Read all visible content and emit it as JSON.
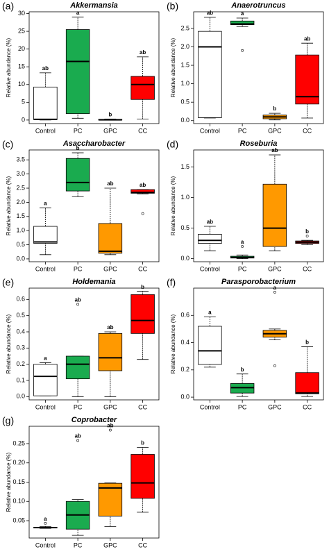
{
  "chart_data": [
    {
      "type": "box",
      "panel": "(a)",
      "title": "Akkermansia",
      "ylabel": "Relative abundance (%)",
      "categories": [
        "Control",
        "PC",
        "GPC",
        "CC"
      ],
      "colors": [
        "#ffffff",
        "#1aab4f",
        "#ff9900",
        "#ff0000"
      ],
      "ylim": [
        -1,
        30.5
      ],
      "yticks": [
        0,
        5,
        10,
        15,
        20,
        25,
        30
      ],
      "boxes": [
        {
          "min": 0,
          "q1": 0.1,
          "median": 0.2,
          "q3": 9.3,
          "max": 13.3,
          "outliers": []
        },
        {
          "min": 0.5,
          "q1": 1.8,
          "median": 16.5,
          "q3": 25.5,
          "max": 29,
          "outliers": []
        },
        {
          "min": 0,
          "q1": 0,
          "median": 0.05,
          "q3": 0.2,
          "max": 0.3,
          "outliers": []
        },
        {
          "min": 0.3,
          "q1": 5.8,
          "median": 10,
          "q3": 12.3,
          "max": 17.8,
          "outliers": []
        }
      ],
      "letters": [
        "ab",
        "a",
        "b",
        "ab"
      ]
    },
    {
      "type": "box",
      "panel": "(b)",
      "title": "Anaerotruncus",
      "ylabel": "Relative abundance (%)",
      "categories": [
        "Control",
        "PC",
        "GPC",
        "CC"
      ],
      "colors": [
        "#ffffff",
        "#1aab4f",
        "#ff9900",
        "#ff0000"
      ],
      "ylim": [
        -0.08,
        2.95
      ],
      "yticks": [
        {
          "value": 0,
          "label": "0.0"
        },
        0.5,
        {
          "value": 1,
          "label": "1.0"
        },
        1.5,
        {
          "value": 2,
          "label": "2.0"
        },
        2.5
      ],
      "boxes": [
        {
          "min": 0.07,
          "q1": 0.08,
          "median": 2.0,
          "q3": 2.42,
          "max": 2.8,
          "outliers": []
        },
        {
          "min": 2.55,
          "q1": 2.6,
          "median": 2.62,
          "q3": 2.7,
          "max": 2.78,
          "outliers": [
            1.9
          ]
        },
        {
          "min": 0.02,
          "q1": 0.05,
          "median": 0.1,
          "q3": 0.15,
          "max": 0.2,
          "outliers": []
        },
        {
          "min": 0.07,
          "q1": 0.45,
          "median": 0.65,
          "q3": 1.78,
          "max": 2.1,
          "outliers": []
        }
      ],
      "letters": [
        "ab",
        "a",
        "b",
        "ab"
      ]
    },
    {
      "type": "box",
      "panel": "(c)",
      "title": "Asaccharobacter",
      "ylabel": "Relative abundance (%)",
      "categories": [
        "Control",
        "PC",
        "GPC",
        "CC"
      ],
      "colors": [
        "#ffffff",
        "#1aab4f",
        "#ff9900",
        "#ff0000"
      ],
      "ylim": [
        -0.1,
        3.85
      ],
      "yticks": [
        {
          "value": 0,
          "label": "0.0"
        },
        0.5,
        {
          "value": 1,
          "label": "1.0"
        },
        1.5,
        {
          "value": 2,
          "label": "2.0"
        },
        2.5,
        {
          "value": 3,
          "label": "3.0"
        },
        3.5
      ],
      "boxes": [
        {
          "min": 0.15,
          "q1": 0.55,
          "median": 0.6,
          "q3": 1.15,
          "max": 1.8,
          "outliers": []
        },
        {
          "min": 2.2,
          "q1": 2.4,
          "median": 2.7,
          "q3": 3.55,
          "max": 3.75,
          "outliers": []
        },
        {
          "min": 0.15,
          "q1": 0.2,
          "median": 0.27,
          "q3": 1.25,
          "max": 2.5,
          "outliers": []
        },
        {
          "min": 2.3,
          "q1": 2.32,
          "median": 2.35,
          "q3": 2.45,
          "max": 2.45,
          "outliers": [
            1.6
          ]
        }
      ],
      "letters": [
        "a",
        "b",
        "ab",
        "ab"
      ]
    },
    {
      "type": "box",
      "panel": "(d)",
      "title": "Roseburia",
      "ylabel": "Relative abundance (%)",
      "categories": [
        "Control",
        "PC",
        "GPC",
        "CC"
      ],
      "colors": [
        "#ffffff",
        "#1aab4f",
        "#ff9900",
        "#ff0000"
      ],
      "ylim": [
        -0.05,
        1.78
      ],
      "yticks": [
        {
          "value": 0,
          "label": "0.0"
        },
        0.5,
        {
          "value": 1,
          "label": "1.0"
        },
        1.5
      ],
      "boxes": [
        {
          "min": 0.13,
          "q1": 0.25,
          "median": 0.3,
          "q3": 0.4,
          "max": 0.53,
          "outliers": []
        },
        {
          "min": 0,
          "q1": 0.01,
          "median": 0.02,
          "q3": 0.04,
          "max": 0.06,
          "outliers": [
            0.2
          ]
        },
        {
          "min": 0.13,
          "q1": 0.2,
          "median": 0.5,
          "q3": 1.22,
          "max": 1.7,
          "outliers": []
        },
        {
          "min": 0.23,
          "q1": 0.25,
          "median": 0.27,
          "q3": 0.29,
          "max": 0.3,
          "outliers": [
            0.37
          ]
        }
      ],
      "letters": [
        "ab",
        "a",
        "ab",
        "b"
      ]
    },
    {
      "type": "box",
      "panel": "(e)",
      "title": "Holdemania",
      "ylabel": "Relative abundance (%)",
      "categories": [
        "Control",
        "PC",
        "GPC",
        "CC"
      ],
      "colors": [
        "#ffffff",
        "#1aab4f",
        "#ff9900",
        "#ff0000"
      ],
      "ylim": [
        -0.02,
        0.67
      ],
      "yticks": [
        {
          "value": 0,
          "label": "0.0"
        },
        0.1,
        0.2,
        0.3,
        0.4,
        0.5,
        0.6
      ],
      "boxes": [
        {
          "min": 0.005,
          "q1": 0.005,
          "median": 0.125,
          "q3": 0.2,
          "max": 0.21,
          "outliers": []
        },
        {
          "min": 0,
          "q1": 0.11,
          "median": 0.2,
          "q3": 0.25,
          "max": 0.25,
          "outliers": [
            0.57
          ]
        },
        {
          "min": 0,
          "q1": 0.16,
          "median": 0.24,
          "q3": 0.39,
          "max": 0.4,
          "outliers": []
        },
        {
          "min": 0.23,
          "q1": 0.39,
          "median": 0.47,
          "q3": 0.63,
          "max": 0.65,
          "outliers": []
        }
      ],
      "letters": [
        "a",
        "ab",
        "ab",
        "b"
      ]
    },
    {
      "type": "box",
      "panel": "(f)",
      "title": "Parasporobacterium",
      "ylabel": "Relative abundance (%)",
      "categories": [
        "Control",
        "PC",
        "GPC",
        "CC"
      ],
      "colors": [
        "#ffffff",
        "#1aab4f",
        "#ff9900",
        "#ff0000"
      ],
      "ylim": [
        -0.02,
        0.8
      ],
      "yticks": [
        {
          "value": 0,
          "label": "0.0"
        },
        0.2,
        0.4,
        0.6
      ],
      "boxes": [
        {
          "min": 0.22,
          "q1": 0.24,
          "median": 0.34,
          "q3": 0.52,
          "max": 0.59,
          "outliers": []
        },
        {
          "min": 0.005,
          "q1": 0.03,
          "median": 0.07,
          "q3": 0.1,
          "max": 0.17,
          "outliers": []
        },
        {
          "min": 0.42,
          "q1": 0.44,
          "median": 0.465,
          "q3": 0.49,
          "max": 0.5,
          "outliers": [
            0.23,
            0.77
          ]
        },
        {
          "min": 0.005,
          "q1": 0.025,
          "median": 0.03,
          "q3": 0.18,
          "max": 0.37,
          "outliers": []
        }
      ],
      "letters": [
        "a",
        "b",
        "a",
        "b"
      ]
    },
    {
      "type": "box",
      "panel": "(g)",
      "title": "Coprobacter",
      "ylabel": "Relative abundance (%)",
      "categories": [
        "Control",
        "PC",
        "GPC",
        "CC"
      ],
      "colors": [
        "#ffffff",
        "#1aab4f",
        "#ff9900",
        "#ff0000"
      ],
      "ylim": [
        0.005,
        0.295
      ],
      "yticks": [
        0.05,
        {
          "value": 0.1,
          "label": "0.10"
        },
        0.15,
        {
          "value": 0.2,
          "label": "0.20"
        },
        0.25
      ],
      "boxes": [
        {
          "min": 0.03,
          "q1": 0.031,
          "median": 0.032,
          "q3": 0.033,
          "max": 0.035,
          "outliers": [
            0.043
          ]
        },
        {
          "min": 0.012,
          "q1": 0.028,
          "median": 0.065,
          "q3": 0.1,
          "max": 0.105,
          "outliers": [
            0.258
          ]
        },
        {
          "min": 0.035,
          "q1": 0.062,
          "median": 0.135,
          "q3": 0.147,
          "max": 0.148,
          "outliers": [
            0.285
          ]
        },
        {
          "min": 0.072,
          "q1": 0.108,
          "median": 0.148,
          "q3": 0.222,
          "max": 0.24,
          "outliers": []
        }
      ],
      "letters": [
        "a",
        "ab",
        "ab",
        "b"
      ]
    }
  ]
}
